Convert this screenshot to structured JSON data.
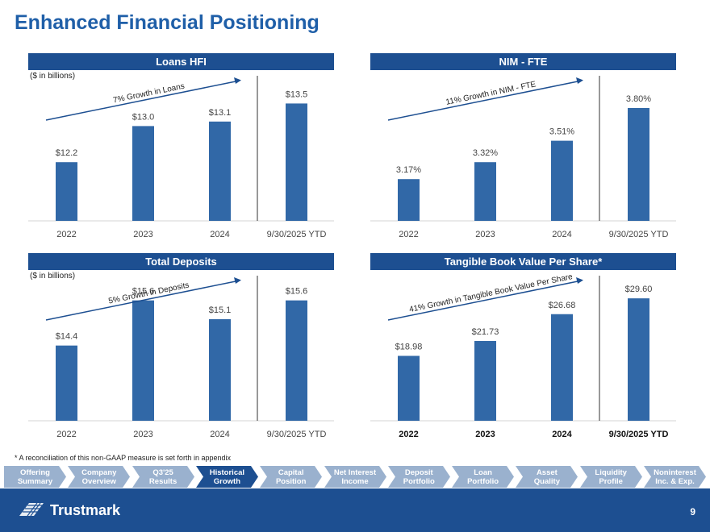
{
  "page": {
    "title": "Enhanced Financial Positioning",
    "footnote": "* A reconciliation of this non-GAAP measure is set forth in appendix",
    "page_number": "9",
    "logo_text": "Trustmark"
  },
  "colors": {
    "bar": "#3168a7",
    "header": "#1d4f91",
    "nav_inactive": "#9ab1ce",
    "nav_active": "#1d4f91",
    "footer": "#1d4f91",
    "title": "#1f5fa8"
  },
  "nav": {
    "items": [
      {
        "label": "Offering\nSummary",
        "active": false
      },
      {
        "label": "Company\nOverview",
        "active": false
      },
      {
        "label": "Q3'25\nResults",
        "active": false
      },
      {
        "label": "Historical\nGrowth",
        "active": true
      },
      {
        "label": "Capital\nPosition",
        "active": false
      },
      {
        "label": "Net Interest\nIncome",
        "active": false
      },
      {
        "label": "Deposit\nPortfolio",
        "active": false
      },
      {
        "label": "Loan\nPortfolio",
        "active": false
      },
      {
        "label": "Asset\nQuality",
        "active": false
      },
      {
        "label": "Liquidity\nProfile",
        "active": false
      },
      {
        "label": "Noninterest\nInc. & Exp.",
        "active": false
      }
    ]
  },
  "chart_data": [
    {
      "type": "bar",
      "title": "Loans HFI",
      "unit_note": "($ in billions)",
      "categories": [
        "2022",
        "2023",
        "2024",
        "9/30/2025 YTD"
      ],
      "values": [
        12.2,
        13.0,
        13.1,
        13.5
      ],
      "labels": [
        "$12.2",
        "$13.0",
        "$13.1",
        "$13.5"
      ],
      "annotation": "7% Growth in Loans",
      "ylim": [
        10.9,
        13.9
      ],
      "bold_ticks": false
    },
    {
      "type": "bar",
      "title": "NIM - FTE",
      "unit_note": "",
      "categories": [
        "2022",
        "2023",
        "2024",
        "9/30/2025 YTD"
      ],
      "values": [
        3.17,
        3.32,
        3.51,
        3.8
      ],
      "labels": [
        "3.17%",
        "3.32%",
        "3.51%",
        "3.80%"
      ],
      "annotation": "11% Growth in NIM - FTE",
      "ylim": [
        2.8,
        4.0
      ],
      "bold_ticks": false
    },
    {
      "type": "bar",
      "title": "Total Deposits",
      "unit_note": "($ in billions)",
      "categories": [
        "2022",
        "2023",
        "2024",
        "9/30/2025 YTD"
      ],
      "values": [
        14.4,
        15.6,
        15.1,
        15.6
      ],
      "labels": [
        "$14.4",
        "$15.6",
        "$15.1",
        "$15.6"
      ],
      "annotation": "5% Growth in Deposits",
      "ylim": [
        12.4,
        16.0
      ],
      "bold_ticks": false
    },
    {
      "type": "bar",
      "title": "Tangible Book Value Per Share*",
      "unit_note": "",
      "categories": [
        "2022",
        "2023",
        "2024",
        "9/30/2025 YTD"
      ],
      "values": [
        18.98,
        21.73,
        26.68,
        29.6
      ],
      "labels": [
        "$18.98",
        "$21.73",
        "$26.68",
        "$29.60"
      ],
      "annotation": "41% Growth in Tangible Book Value Per Share",
      "ylim": [
        7.0,
        32.0
      ],
      "bold_ticks": true
    }
  ]
}
